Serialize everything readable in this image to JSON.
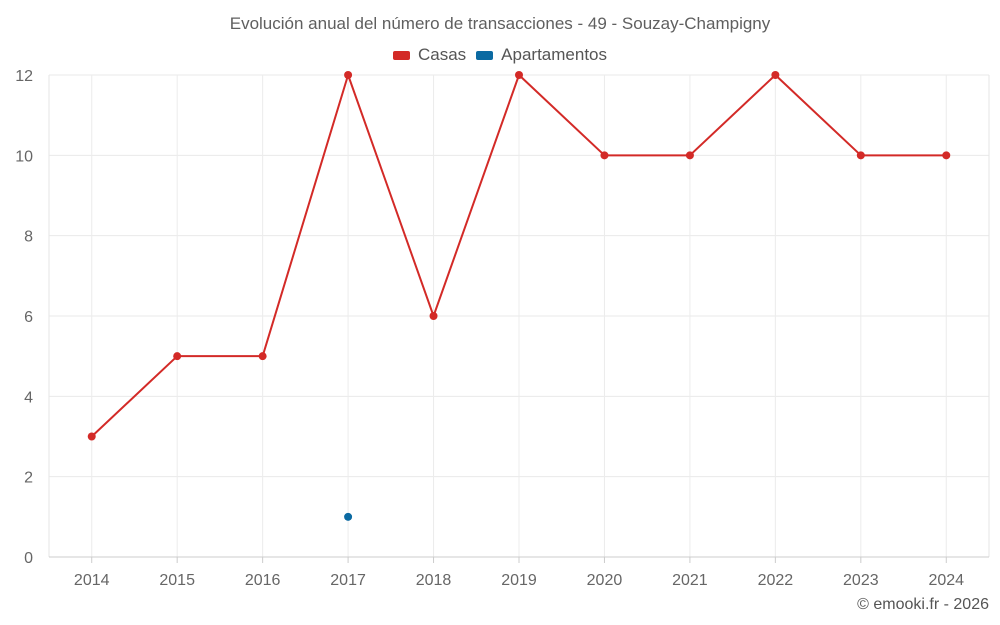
{
  "chart_data": {
    "type": "line",
    "title": "Evolución anual del número de transacciones - 49 - Souzay-Champigny",
    "categories": [
      "2014",
      "2015",
      "2016",
      "2017",
      "2018",
      "2019",
      "2020",
      "2021",
      "2022",
      "2023",
      "2024"
    ],
    "series": [
      {
        "name": "Casas",
        "color": "#d32a27",
        "values": [
          3,
          5,
          5,
          12,
          6,
          12,
          10,
          10,
          12,
          10,
          10
        ]
      },
      {
        "name": "Apartamentos",
        "color": "#0b6aa2",
        "values": [
          null,
          null,
          null,
          1,
          null,
          null,
          null,
          null,
          null,
          null,
          null
        ]
      }
    ],
    "yticks": [
      "0",
      "2",
      "4",
      "6",
      "8",
      "10",
      "12"
    ],
    "ylim": [
      0,
      12
    ],
    "grid": true,
    "legend_position": "top-center"
  },
  "footer": {
    "credit": "© emooki.fr - 2026"
  }
}
